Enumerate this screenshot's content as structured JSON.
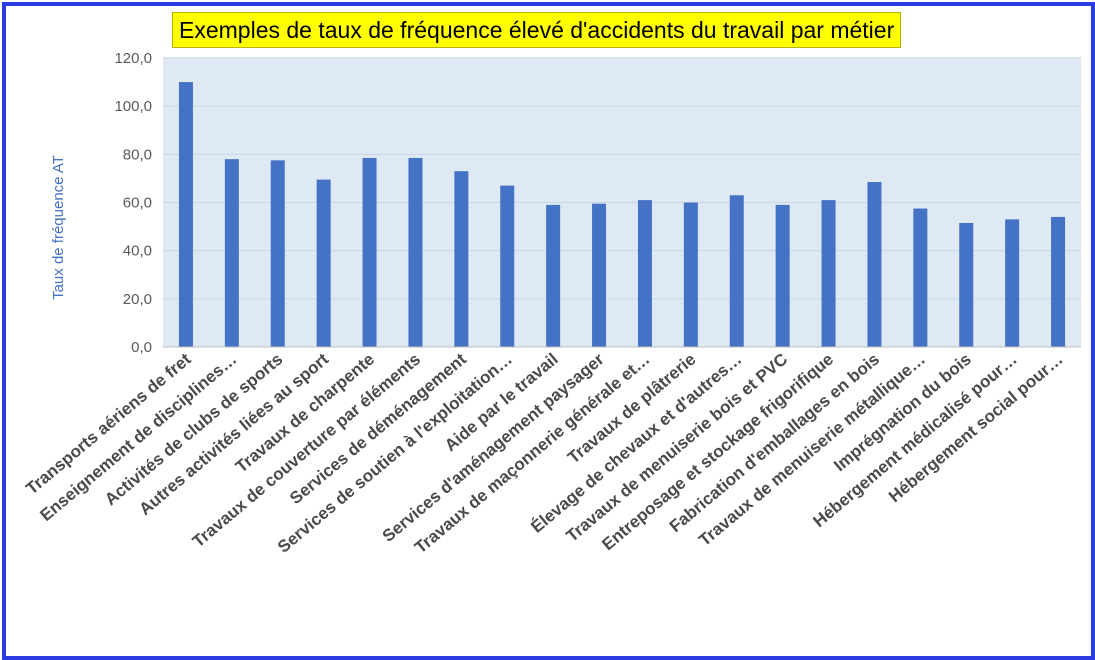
{
  "chart_data": {
    "type": "bar",
    "title": "Exemples de taux de fréquence élevé d'accidents du travail par métier",
    "xlabel": "",
    "ylabel": "Taux de fréquence AT",
    "ylim": [
      0,
      120
    ],
    "yticks": [
      "0,0",
      "20,0",
      "40,0",
      "60,0",
      "80,0",
      "100,0",
      "120,0"
    ],
    "grid": true,
    "bar_color": "#4472c4",
    "plot_background": "#dee9f4",
    "categories": [
      "Transports aériens de fret",
      "Enseignement de disciplines…",
      "Activités de clubs de sports",
      "Autres activités liées au sport",
      "Travaux de charpente",
      "Travaux de couverture par éléments",
      "Services de déménagement",
      "Services de soutien à l'exploitation…",
      "Aide par le travail",
      "Services d'aménagement paysager",
      "Travaux de maçonnerie générale et…",
      "Travaux de plâtrerie",
      "Élevage de chevaux et d'autres…",
      "Travaux de menuiserie bois et PVC",
      "Entreposage et stockage frigorifique",
      "Fabrication d'emballages en bois",
      "Travaux de menuiserie métallique…",
      "Imprégnation du bois",
      "Hébergement médicalisé pour…",
      "Hébergement social pour…"
    ],
    "values": [
      110,
      78,
      77.5,
      69.5,
      78.5,
      78.5,
      73,
      67,
      59,
      59.5,
      61,
      60,
      63,
      59,
      61,
      68.5,
      57.5,
      51.5,
      53,
      54
    ]
  }
}
